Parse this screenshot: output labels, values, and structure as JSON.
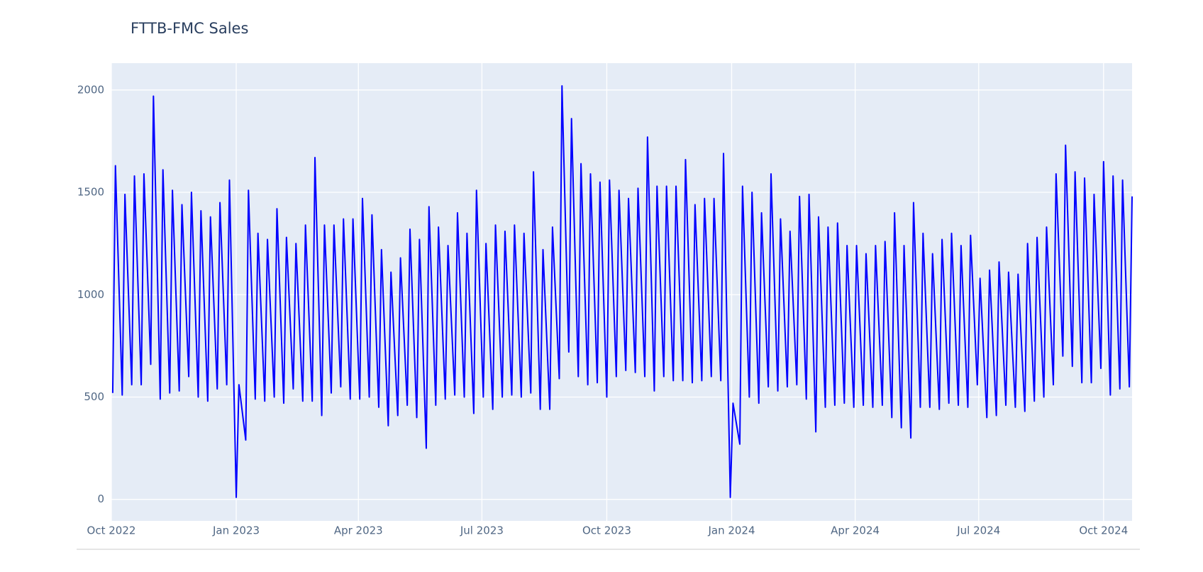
{
  "chart_data": {
    "type": "line",
    "title": "FTTB-FMC Sales",
    "x": [
      "2022-10-02",
      "2022-10-04",
      "2022-10-09",
      "2022-10-11",
      "2022-10-16",
      "2022-10-18",
      "2022-10-23",
      "2022-10-25",
      "2022-10-30",
      "2022-11-01",
      "2022-11-06",
      "2022-11-08",
      "2022-11-13",
      "2022-11-15",
      "2022-11-20",
      "2022-11-22",
      "2022-11-27",
      "2022-11-29",
      "2022-12-04",
      "2022-12-06",
      "2022-12-11",
      "2022-12-13",
      "2022-12-18",
      "2022-12-20",
      "2022-12-25",
      "2022-12-27",
      "2023-01-01",
      "2023-01-03",
      "2023-01-08",
      "2023-01-10",
      "2023-01-15",
      "2023-01-17",
      "2023-01-22",
      "2023-01-24",
      "2023-01-29",
      "2023-01-31",
      "2023-02-05",
      "2023-02-07",
      "2023-02-12",
      "2023-02-14",
      "2023-02-19",
      "2023-02-21",
      "2023-02-26",
      "2023-02-28",
      "2023-03-05",
      "2023-03-07",
      "2023-03-12",
      "2023-03-14",
      "2023-03-19",
      "2023-03-21",
      "2023-03-26",
      "2023-03-28",
      "2023-04-02",
      "2023-04-04",
      "2023-04-09",
      "2023-04-11",
      "2023-04-16",
      "2023-04-18",
      "2023-04-23",
      "2023-04-25",
      "2023-04-30",
      "2023-05-02",
      "2023-05-07",
      "2023-05-09",
      "2023-05-14",
      "2023-05-16",
      "2023-05-21",
      "2023-05-23",
      "2023-05-28",
      "2023-05-30",
      "2023-06-04",
      "2023-06-06",
      "2023-06-11",
      "2023-06-13",
      "2023-06-18",
      "2023-06-20",
      "2023-06-25",
      "2023-06-27",
      "2023-07-02",
      "2023-07-04",
      "2023-07-09",
      "2023-07-11",
      "2023-07-16",
      "2023-07-18",
      "2023-07-23",
      "2023-07-25",
      "2023-07-30",
      "2023-08-01",
      "2023-08-06",
      "2023-08-08",
      "2023-08-13",
      "2023-08-15",
      "2023-08-20",
      "2023-08-22",
      "2023-08-27",
      "2023-08-29",
      "2023-09-03",
      "2023-09-05",
      "2023-09-10",
      "2023-09-12",
      "2023-09-17",
      "2023-09-19",
      "2023-09-24",
      "2023-09-26",
      "2023-10-01",
      "2023-10-03",
      "2023-10-08",
      "2023-10-10",
      "2023-10-15",
      "2023-10-17",
      "2023-10-22",
      "2023-10-24",
      "2023-10-29",
      "2023-10-31",
      "2023-11-05",
      "2023-11-07",
      "2023-11-12",
      "2023-11-14",
      "2023-11-19",
      "2023-11-21",
      "2023-11-26",
      "2023-11-28",
      "2023-12-03",
      "2023-12-05",
      "2023-12-10",
      "2023-12-12",
      "2023-12-17",
      "2023-12-19",
      "2023-12-24",
      "2023-12-26",
      "2023-12-31",
      "2024-01-02",
      "2024-01-07",
      "2024-01-09",
      "2024-01-14",
      "2024-01-16",
      "2024-01-21",
      "2024-01-23",
      "2024-01-28",
      "2024-01-30",
      "2024-02-04",
      "2024-02-06",
      "2024-02-11",
      "2024-02-13",
      "2024-02-18",
      "2024-02-20",
      "2024-02-25",
      "2024-02-27",
      "2024-03-03",
      "2024-03-05",
      "2024-03-10",
      "2024-03-12",
      "2024-03-17",
      "2024-03-19",
      "2024-03-24",
      "2024-03-26",
      "2024-03-31",
      "2024-04-02",
      "2024-04-07",
      "2024-04-09",
      "2024-04-14",
      "2024-04-16",
      "2024-04-21",
      "2024-04-23",
      "2024-04-28",
      "2024-04-30",
      "2024-05-05",
      "2024-05-07",
      "2024-05-12",
      "2024-05-14",
      "2024-05-19",
      "2024-05-21",
      "2024-05-26",
      "2024-05-28",
      "2024-06-02",
      "2024-06-04",
      "2024-06-09",
      "2024-06-11",
      "2024-06-16",
      "2024-06-18",
      "2024-06-23",
      "2024-06-25",
      "2024-06-30",
      "2024-07-02",
      "2024-07-07",
      "2024-07-09",
      "2024-07-14",
      "2024-07-16",
      "2024-07-21",
      "2024-07-23",
      "2024-07-28",
      "2024-07-30",
      "2024-08-04",
      "2024-08-06",
      "2024-08-11",
      "2024-08-13",
      "2024-08-18",
      "2024-08-20",
      "2024-08-25",
      "2024-08-27",
      "2024-09-01",
      "2024-09-03",
      "2024-09-08",
      "2024-09-10",
      "2024-09-15",
      "2024-09-17",
      "2024-09-22",
      "2024-09-24",
      "2024-09-29",
      "2024-10-01",
      "2024-10-06",
      "2024-10-08",
      "2024-10-13",
      "2024-10-15",
      "2024-10-20",
      "2024-10-22"
    ],
    "series": [
      {
        "color": "#0000ff",
        "values": [
          520,
          1630,
          510,
          1490,
          560,
          1580,
          560,
          1590,
          660,
          1970,
          490,
          1610,
          520,
          1510,
          530,
          1440,
          600,
          1500,
          500,
          1410,
          480,
          1380,
          540,
          1450,
          560,
          1560,
          10,
          560,
          290,
          1510,
          490,
          1300,
          480,
          1270,
          500,
          1420,
          470,
          1280,
          540,
          1250,
          480,
          1340,
          480,
          1670,
          410,
          1340,
          520,
          1340,
          550,
          1370,
          490,
          1370,
          490,
          1470,
          500,
          1390,
          450,
          1220,
          360,
          1110,
          410,
          1180,
          460,
          1320,
          400,
          1270,
          250,
          1430,
          460,
          1330,
          490,
          1240,
          510,
          1400,
          500,
          1300,
          420,
          1510,
          500,
          1250,
          440,
          1340,
          500,
          1310,
          510,
          1340,
          500,
          1300,
          520,
          1600,
          440,
          1220,
          440,
          1330,
          590,
          2020,
          720,
          1860,
          600,
          1640,
          560,
          1590,
          570,
          1550,
          500,
          1560,
          600,
          1510,
          630,
          1470,
          620,
          1520,
          600,
          1770,
          530,
          1530,
          600,
          1530,
          580,
          1530,
          580,
          1660,
          570,
          1440,
          580,
          1470,
          600,
          1470,
          580,
          1690,
          10,
          470,
          270,
          1530,
          500,
          1500,
          470,
          1400,
          550,
          1590,
          530,
          1370,
          550,
          1310,
          560,
          1480,
          490,
          1490,
          330,
          1380,
          450,
          1330,
          460,
          1350,
          470,
          1240,
          450,
          1240,
          460,
          1200,
          450,
          1240,
          460,
          1260,
          400,
          1400,
          350,
          1240,
          300,
          1450,
          450,
          1300,
          450,
          1200,
          440,
          1270,
          470,
          1300,
          460,
          1240,
          450,
          1290,
          560,
          1080,
          400,
          1120,
          410,
          1160,
          460,
          1110,
          450,
          1100,
          430,
          1250,
          480,
          1280,
          500,
          1330,
          560,
          1590,
          700,
          1730,
          650,
          1600,
          570,
          1570,
          570,
          1490,
          640,
          1650,
          510,
          1580,
          540,
          1560,
          550,
          1480
        ]
      }
    ],
    "xlim": [
      "2022-10-01",
      "2024-10-22"
    ],
    "xticks": [
      {
        "value": "2022-10-01",
        "label": "Oct 2022"
      },
      {
        "value": "2023-01-01",
        "label": "Jan 2023"
      },
      {
        "value": "2023-04-01",
        "label": "Apr 2023"
      },
      {
        "value": "2023-07-01",
        "label": "Jul 2023"
      },
      {
        "value": "2023-10-01",
        "label": "Oct 2023"
      },
      {
        "value": "2024-01-01",
        "label": "Jan 2024"
      },
      {
        "value": "2024-04-01",
        "label": "Apr 2024"
      },
      {
        "value": "2024-07-01",
        "label": "Jul 2024"
      },
      {
        "value": "2024-10-01",
        "label": "Oct 2024"
      }
    ],
    "ylim": [
      -105,
      2131
    ],
    "yticks": [
      0,
      500,
      1000,
      1500,
      2000
    ],
    "grid": true
  }
}
